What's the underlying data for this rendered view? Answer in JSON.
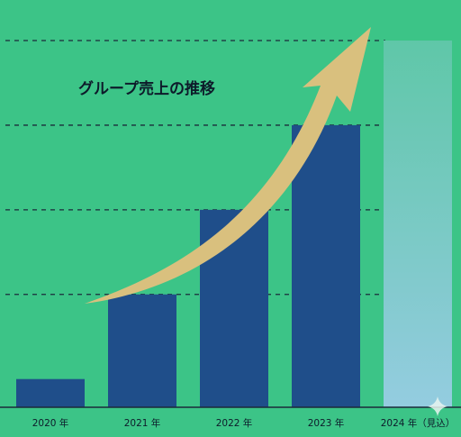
{
  "chart_data": {
    "type": "bar",
    "title": "グループ売上の推移",
    "categories": [
      "2020 年",
      "2021 年",
      "2022 年",
      "2023 年",
      "2024 年（見込）"
    ],
    "values": [
      1,
      4,
      7,
      10,
      13
    ],
    "projected": [
      false,
      false,
      false,
      false,
      true
    ],
    "ylim": [
      0,
      13
    ],
    "grid": true,
    "legend": "none",
    "trend_arrow": true,
    "colors": {
      "background": "#3cc487",
      "bar": "#1f4e8a",
      "projected_bar_top": "#5fc7a8",
      "projected_bar_bottom": "#94cce0",
      "arrow": "#d9c07e",
      "grid": "#1b2a3a",
      "text": "#0d1b2a"
    }
  }
}
